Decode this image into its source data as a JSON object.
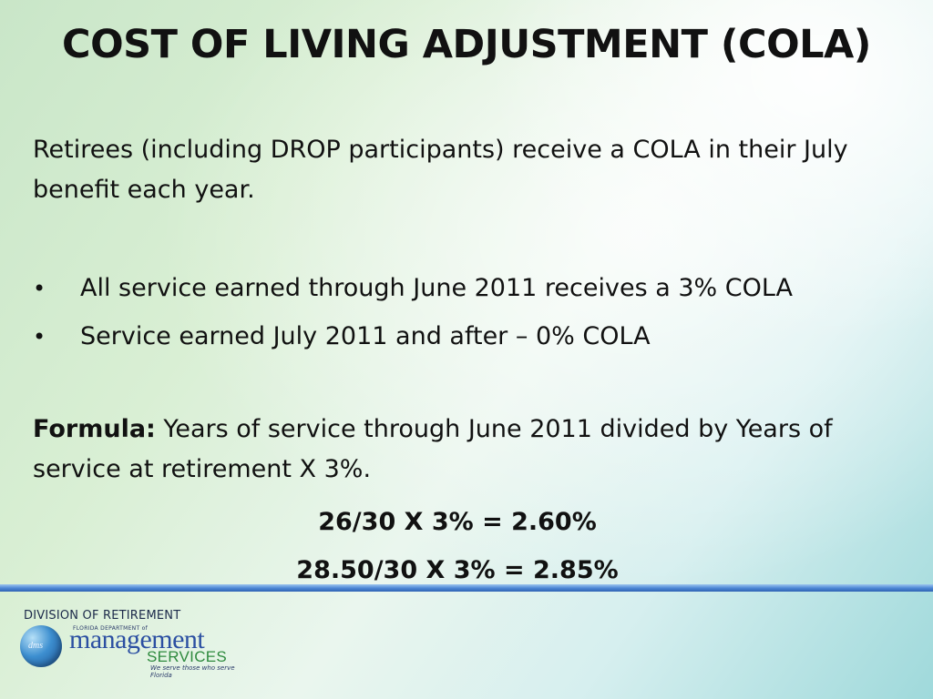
{
  "slide": {
    "title": "COST OF LIVING ADJUSTMENT (COLA)",
    "intro": "Retirees (including DROP participants) receive a COLA in their July benefit each year.",
    "bullets": [
      {
        "marker": "•",
        "text": "All service earned through June 2011 receives a 3%  COLA"
      },
      {
        "marker": "•",
        "text": "Service earned July 2011 and after – 0% COLA"
      }
    ],
    "formula_label": "Formula:",
    "formula_text": " Years of service through June 2011 divided by Years of service at retirement  X 3%.",
    "calculations": [
      "26/30   X  3%  =  2.60%",
      "28.50/30  X  3%  =  2.85%"
    ]
  },
  "footer": {
    "division_label": "DIVISION OF RETIREMENT",
    "logo": {
      "globe_text": "dms",
      "small_text": "FLORIDA DEPARTMENT of",
      "main_text": "management",
      "services_text": "SERVICES",
      "tagline": "We serve those who serve Florida"
    }
  },
  "colors": {
    "divider": "#4f8ad6",
    "logo_blue": "#2b4fa2",
    "logo_green": "#2e8a3e"
  }
}
